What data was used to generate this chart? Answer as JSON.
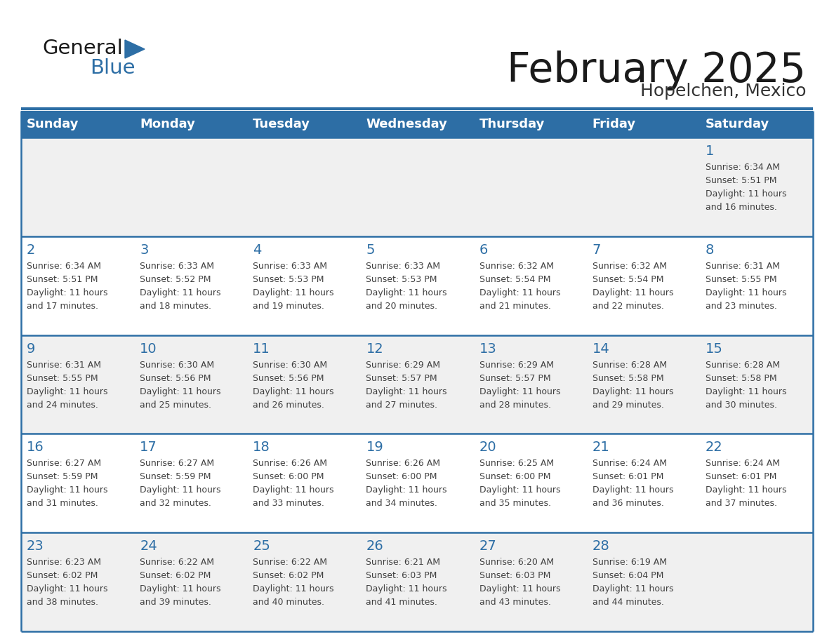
{
  "title": "February 2025",
  "subtitle": "Hopelchen, Mexico",
  "days_of_week": [
    "Sunday",
    "Monday",
    "Tuesday",
    "Wednesday",
    "Thursday",
    "Friday",
    "Saturday"
  ],
  "header_bg": "#2D6EA5",
  "header_text_color": "#FFFFFF",
  "cell_bg_white": "#FFFFFF",
  "cell_bg_gray": "#F0F0F0",
  "border_color": "#2D6EA5",
  "day_num_color": "#2D6EA5",
  "text_color": "#404040",
  "logo_general_color": "#1a1a1a",
  "logo_blue_color": "#2D6EA5",
  "calendar": [
    [
      null,
      null,
      null,
      null,
      null,
      null,
      {
        "day": 1,
        "sunrise": "6:34 AM",
        "sunset": "5:51 PM",
        "daylight": "11 hours and 16 minutes."
      }
    ],
    [
      {
        "day": 2,
        "sunrise": "6:34 AM",
        "sunset": "5:51 PM",
        "daylight": "11 hours and 17 minutes."
      },
      {
        "day": 3,
        "sunrise": "6:33 AM",
        "sunset": "5:52 PM",
        "daylight": "11 hours and 18 minutes."
      },
      {
        "day": 4,
        "sunrise": "6:33 AM",
        "sunset": "5:53 PM",
        "daylight": "11 hours and 19 minutes."
      },
      {
        "day": 5,
        "sunrise": "6:33 AM",
        "sunset": "5:53 PM",
        "daylight": "11 hours and 20 minutes."
      },
      {
        "day": 6,
        "sunrise": "6:32 AM",
        "sunset": "5:54 PM",
        "daylight": "11 hours and 21 minutes."
      },
      {
        "day": 7,
        "sunrise": "6:32 AM",
        "sunset": "5:54 PM",
        "daylight": "11 hours and 22 minutes."
      },
      {
        "day": 8,
        "sunrise": "6:31 AM",
        "sunset": "5:55 PM",
        "daylight": "11 hours and 23 minutes."
      }
    ],
    [
      {
        "day": 9,
        "sunrise": "6:31 AM",
        "sunset": "5:55 PM",
        "daylight": "11 hours and 24 minutes."
      },
      {
        "day": 10,
        "sunrise": "6:30 AM",
        "sunset": "5:56 PM",
        "daylight": "11 hours and 25 minutes."
      },
      {
        "day": 11,
        "sunrise": "6:30 AM",
        "sunset": "5:56 PM",
        "daylight": "11 hours and 26 minutes."
      },
      {
        "day": 12,
        "sunrise": "6:29 AM",
        "sunset": "5:57 PM",
        "daylight": "11 hours and 27 minutes."
      },
      {
        "day": 13,
        "sunrise": "6:29 AM",
        "sunset": "5:57 PM",
        "daylight": "11 hours and 28 minutes."
      },
      {
        "day": 14,
        "sunrise": "6:28 AM",
        "sunset": "5:58 PM",
        "daylight": "11 hours and 29 minutes."
      },
      {
        "day": 15,
        "sunrise": "6:28 AM",
        "sunset": "5:58 PM",
        "daylight": "11 hours and 30 minutes."
      }
    ],
    [
      {
        "day": 16,
        "sunrise": "6:27 AM",
        "sunset": "5:59 PM",
        "daylight": "11 hours and 31 minutes."
      },
      {
        "day": 17,
        "sunrise": "6:27 AM",
        "sunset": "5:59 PM",
        "daylight": "11 hours and 32 minutes."
      },
      {
        "day": 18,
        "sunrise": "6:26 AM",
        "sunset": "6:00 PM",
        "daylight": "11 hours and 33 minutes."
      },
      {
        "day": 19,
        "sunrise": "6:26 AM",
        "sunset": "6:00 PM",
        "daylight": "11 hours and 34 minutes."
      },
      {
        "day": 20,
        "sunrise": "6:25 AM",
        "sunset": "6:00 PM",
        "daylight": "11 hours and 35 minutes."
      },
      {
        "day": 21,
        "sunrise": "6:24 AM",
        "sunset": "6:01 PM",
        "daylight": "11 hours and 36 minutes."
      },
      {
        "day": 22,
        "sunrise": "6:24 AM",
        "sunset": "6:01 PM",
        "daylight": "11 hours and 37 minutes."
      }
    ],
    [
      {
        "day": 23,
        "sunrise": "6:23 AM",
        "sunset": "6:02 PM",
        "daylight": "11 hours and 38 minutes."
      },
      {
        "day": 24,
        "sunrise": "6:22 AM",
        "sunset": "6:02 PM",
        "daylight": "11 hours and 39 minutes."
      },
      {
        "day": 25,
        "sunrise": "6:22 AM",
        "sunset": "6:02 PM",
        "daylight": "11 hours and 40 minutes."
      },
      {
        "day": 26,
        "sunrise": "6:21 AM",
        "sunset": "6:03 PM",
        "daylight": "11 hours and 41 minutes."
      },
      {
        "day": 27,
        "sunrise": "6:20 AM",
        "sunset": "6:03 PM",
        "daylight": "11 hours and 43 minutes."
      },
      {
        "day": 28,
        "sunrise": "6:19 AM",
        "sunset": "6:04 PM",
        "daylight": "11 hours and 44 minutes."
      },
      null
    ]
  ]
}
